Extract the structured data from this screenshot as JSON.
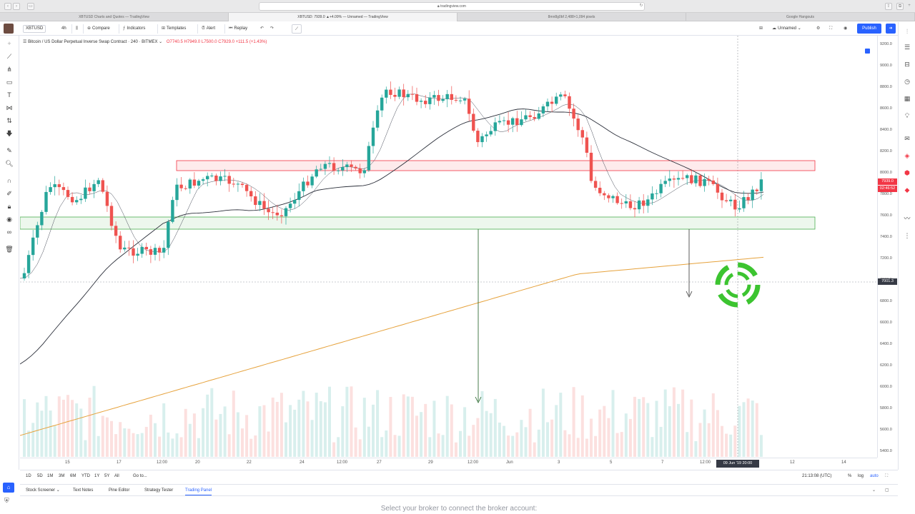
{
  "browser": {
    "url": "tradingview.com",
    "tabs": [
      {
        "label": "XBTUSD Charts and Quotes — TradingView",
        "active": false
      },
      {
        "label": "XBTUSD: 7939.0 ▲+4.09% — Unnamed — TradingView",
        "active": true
      },
      {
        "label": "8mn8g0bf 2,488×1,094 pixels",
        "active": false
      },
      {
        "label": "Google Hangouts",
        "active": false
      }
    ]
  },
  "toolbar": {
    "symbol": "XBTUSD",
    "interval": "4h",
    "compare": "Compare",
    "indicators": "Indicators",
    "templates": "Templates",
    "alert": "Alert",
    "replay": "Replay",
    "layout_name": "Unnamed",
    "publish": "Publish"
  },
  "legend": {
    "title": "Bitcoin / US Dollar Perpetual Inverse Swap Contract · 240 · BITMEX",
    "ohlc": "O7740.5  H7949.0  L7500.0  C7929.0  +111.5 (+1.43%)",
    "accent_color": "#f23645"
  },
  "price_axis": {
    "labels": [
      "9200.0",
      "9000.0",
      "8800.0",
      "8600.0",
      "8400.0",
      "8200.0",
      "8000.0",
      "7800.0",
      "7600.0",
      "7400.0",
      "7200.0",
      "7000.0",
      "6800.0",
      "6600.0",
      "6400.0",
      "6200.0",
      "6000.0",
      "5800.0",
      "5600.0",
      "5400.0"
    ],
    "last_price": "7939.0",
    "countdown": "02:46:52",
    "crosshair_price": "7001.3"
  },
  "time_axis": {
    "labels": [
      "15",
      "17",
      "12:00",
      "20",
      "22",
      "24",
      "12:00",
      "27",
      "29",
      "12:00",
      "Jun",
      "3",
      "5",
      "7",
      "12:00",
      "12",
      "14"
    ],
    "crosshair_time": "09 Jun '19  20:00"
  },
  "range_bar": {
    "ranges": [
      "1D",
      "5D",
      "1M",
      "3M",
      "6M",
      "YTD",
      "1Y",
      "5Y",
      "All"
    ],
    "goto": "Go to...",
    "clock": "21:13:08 (UTC)",
    "percent": "%",
    "log": "log",
    "auto": "auto"
  },
  "bottom_panel": {
    "tabs": [
      "Stock Screener",
      "Text Notes",
      "Pine Editor",
      "Strategy Tester",
      "Trading Panel"
    ],
    "active_tab": "Trading Panel",
    "broker_message": "Select your broker to connect the broker account:"
  },
  "colors": {
    "up": "#26a69a",
    "down": "#ef5350",
    "resistance_zone": "#f23645",
    "support_zone": "#4caf50",
    "ma_short": "#2a2e39",
    "ma_long": "#e6a23c",
    "target_icon": "#3cc430"
  }
}
